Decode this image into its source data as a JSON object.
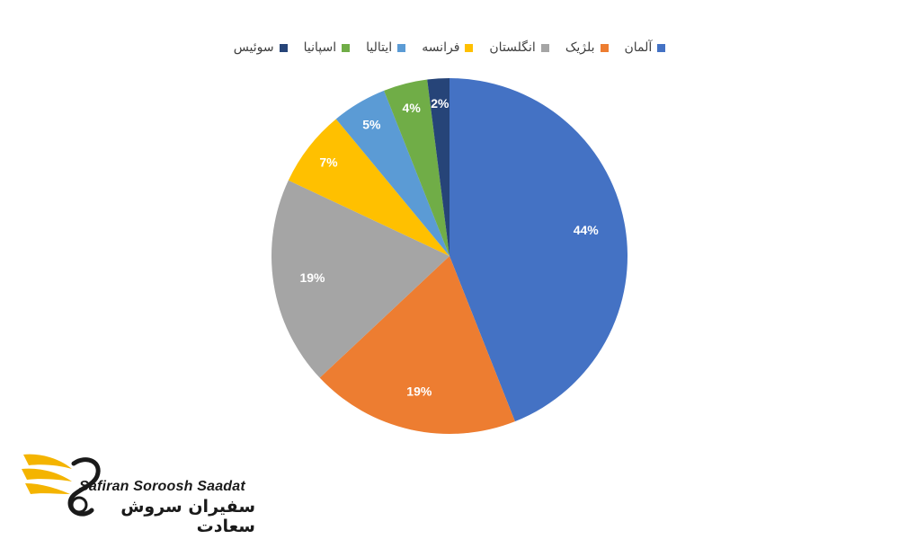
{
  "chart_data": {
    "type": "pie",
    "categories": [
      "آلمان",
      "بلژیک",
      "انگلستان",
      "فرانسه",
      "ایتالیا",
      "اسپانیا",
      "سوئیس"
    ],
    "values": [
      44,
      19,
      19,
      7,
      5,
      4,
      2
    ],
    "value_labels": [
      "44%",
      "19%",
      "19%",
      "7%",
      "5%",
      "4%",
      "2%"
    ],
    "colors": [
      "#4472C4",
      "#ED7D31",
      "#A5A5A5",
      "#FFC000",
      "#5B9BD5",
      "#70AD47",
      "#264478"
    ],
    "legend_position": "top",
    "start_angle": "12 o'clock",
    "direction": "clockwise"
  },
  "brand": {
    "name_en": "Safiran Soroosh Saadat",
    "name_fa": "سفیران سروش سعادت"
  }
}
